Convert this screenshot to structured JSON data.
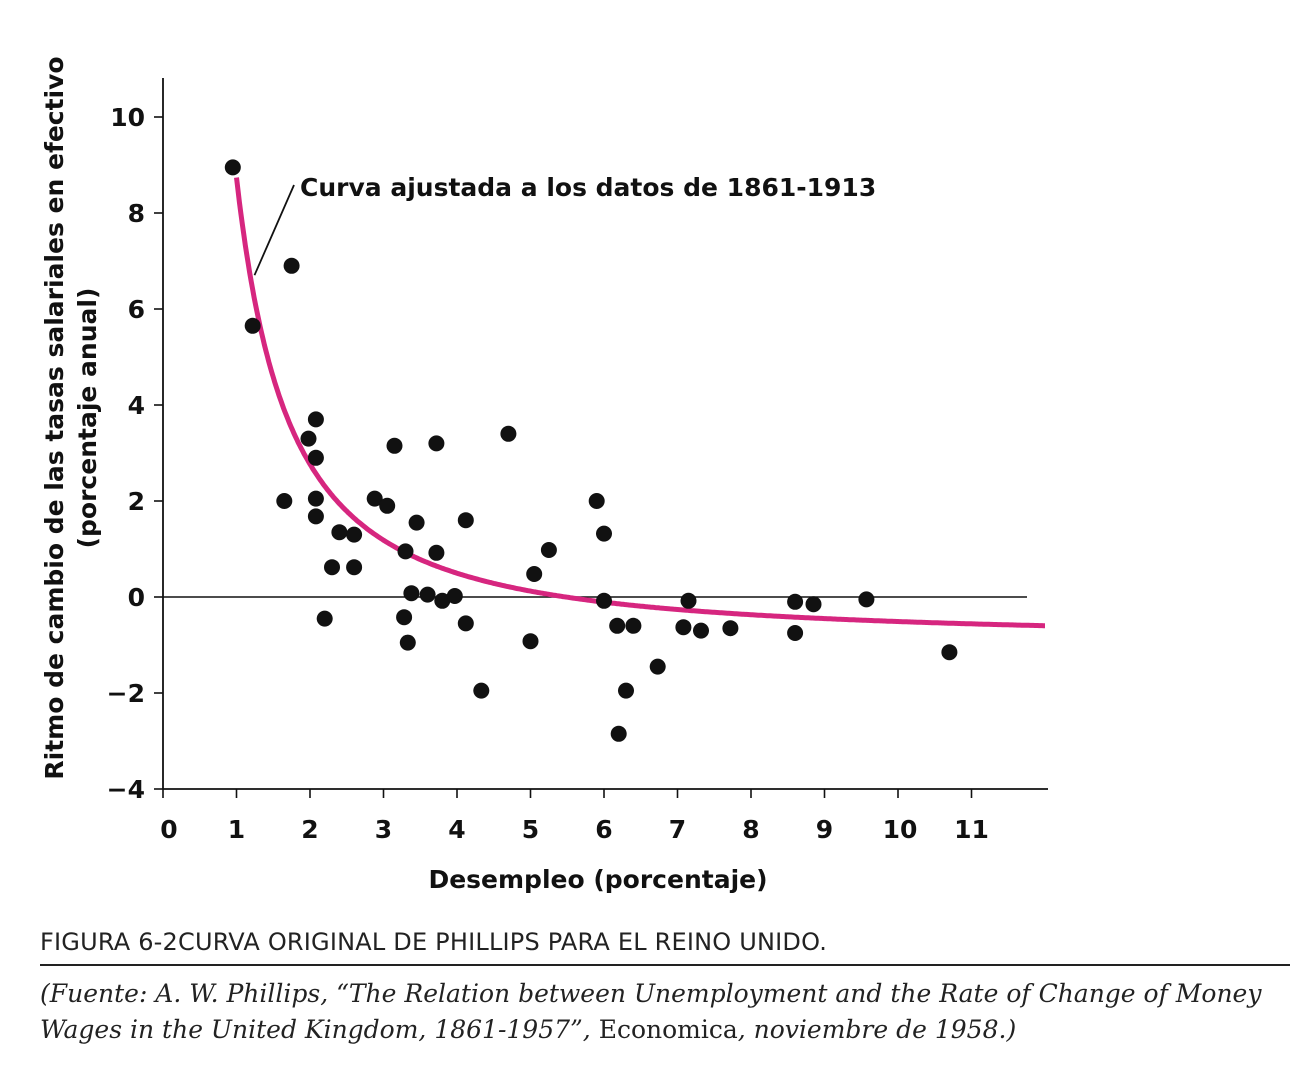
{
  "chart_data": {
    "type": "scatter",
    "xlabel": "Desempleo (porcentaje)",
    "ylabel": [
      "Ritmo de cambio de las tasas salariales en efectivo",
      "(porcentaje anual)"
    ],
    "xlim": [
      0,
      12
    ],
    "ylim": [
      -4,
      10.8
    ],
    "xticks": [
      "0",
      "1",
      "2",
      "3",
      "4",
      "5",
      "6",
      "7",
      "8",
      "9",
      "10",
      "11"
    ],
    "yticks": [
      "10",
      "8",
      "6",
      "4",
      "2",
      "0",
      "−2",
      "−4"
    ],
    "ytick_values": [
      10,
      8,
      6,
      4,
      2,
      0,
      -2,
      -4
    ],
    "zero_line": true,
    "grid": false,
    "annotation": "Curva ajustada a los datos de 1861-1913",
    "curve": {
      "name": "Curva ajustada a los datos de 1861-1913",
      "color": "#d6267f",
      "formula": "y = -0.9 + 9.638 * x^-1.394",
      "x": [
        1.0,
        1.1,
        1.2,
        1.3,
        1.4,
        1.5,
        1.6,
        1.7,
        1.8,
        1.9,
        2.0,
        2.2,
        2.4,
        2.6,
        2.8,
        3.0,
        3.3,
        3.6,
        4.0,
        4.5,
        5.0,
        5.5,
        6.0,
        6.5,
        7.0,
        7.5,
        8.0,
        8.5,
        9.0,
        9.5,
        10.0,
        10.5,
        11.0,
        11.5,
        12.0
      ],
      "y": [
        10.0,
        8.47,
        7.28,
        6.35,
        5.62,
        5.02,
        4.52,
        4.1,
        3.74,
        3.43,
        3.17,
        2.72,
        2.37,
        2.08,
        1.85,
        1.64,
        1.4,
        1.2,
        0.99,
        0.78,
        0.62,
        0.49,
        0.38,
        0.29,
        0.21,
        0.14,
        0.08,
        0.03,
        -0.02,
        -0.06,
        -0.1,
        -0.13,
        -0.16,
        -0.19,
        -0.22
      ]
    },
    "points": [
      {
        "x": 0.95,
        "y": 8.95
      },
      {
        "x": 1.22,
        "y": 5.65
      },
      {
        "x": 1.65,
        "y": 2.0
      },
      {
        "x": 1.75,
        "y": 6.9
      },
      {
        "x": 1.98,
        "y": 3.3
      },
      {
        "x": 2.08,
        "y": 3.7
      },
      {
        "x": 2.08,
        "y": 2.9
      },
      {
        "x": 2.08,
        "y": 2.05
      },
      {
        "x": 2.08,
        "y": 1.68
      },
      {
        "x": 2.2,
        "y": -0.45
      },
      {
        "x": 2.3,
        "y": 0.62
      },
      {
        "x": 2.4,
        "y": 1.35
      },
      {
        "x": 2.6,
        "y": 1.3
      },
      {
        "x": 2.6,
        "y": 0.62
      },
      {
        "x": 2.88,
        "y": 2.05
      },
      {
        "x": 3.05,
        "y": 1.9
      },
      {
        "x": 3.15,
        "y": 3.15
      },
      {
        "x": 3.3,
        "y": 0.95
      },
      {
        "x": 3.28,
        "y": -0.42
      },
      {
        "x": 3.33,
        "y": -0.95
      },
      {
        "x": 3.38,
        "y": 0.08
      },
      {
        "x": 3.45,
        "y": 1.55
      },
      {
        "x": 3.6,
        "y": 0.05
      },
      {
        "x": 3.72,
        "y": 3.2
      },
      {
        "x": 3.72,
        "y": 0.92
      },
      {
        "x": 3.8,
        "y": -0.08
      },
      {
        "x": 3.97,
        "y": 0.02
      },
      {
        "x": 4.12,
        "y": 1.6
      },
      {
        "x": 4.12,
        "y": -0.55
      },
      {
        "x": 4.33,
        "y": -1.95
      },
      {
        "x": 4.7,
        "y": 3.4
      },
      {
        "x": 5.0,
        "y": -0.92
      },
      {
        "x": 5.05,
        "y": 0.48
      },
      {
        "x": 5.25,
        "y": 0.98
      },
      {
        "x": 5.9,
        "y": 2.0
      },
      {
        "x": 6.0,
        "y": 1.32
      },
      {
        "x": 6.0,
        "y": -0.08
      },
      {
        "x": 6.18,
        "y": -0.6
      },
      {
        "x": 6.2,
        "y": -2.85
      },
      {
        "x": 6.3,
        "y": -1.95
      },
      {
        "x": 6.4,
        "y": -0.6
      },
      {
        "x": 6.73,
        "y": -1.45
      },
      {
        "x": 7.08,
        "y": -0.63
      },
      {
        "x": 7.15,
        "y": -0.08
      },
      {
        "x": 7.32,
        "y": -0.7
      },
      {
        "x": 7.72,
        "y": -0.65
      },
      {
        "x": 8.6,
        "y": -0.1
      },
      {
        "x": 8.6,
        "y": -0.75
      },
      {
        "x": 8.85,
        "y": -0.15
      },
      {
        "x": 9.57,
        "y": -0.05
      },
      {
        "x": 10.7,
        "y": -1.15
      }
    ]
  },
  "caption": {
    "figure_number": "FIGURA 6-2",
    "title": "CURVA ORIGINAL DE PHILLIPS PARA EL REINO UNIDO."
  },
  "source": {
    "part1": "(Fuente: A. W. Phillips, “The Relation between Unemployment and the Rate of Change of Money Wages in the United Kingdom, 1861-1957”,",
    "part2": "Economica",
    "part3": ", noviembre de 1958.)"
  }
}
